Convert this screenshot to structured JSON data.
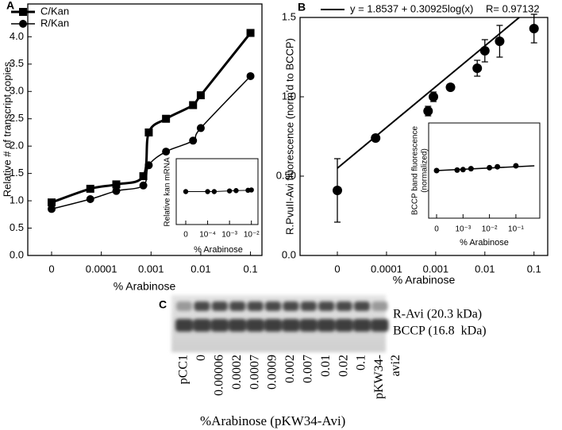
{
  "chart_data": [
    {
      "type": "line",
      "panel_label": "A",
      "xlabel": "% Arabinose",
      "ylabel": "Relative # of transcript copies",
      "xscale": "log",
      "xlim": [
        0,
        0.17
      ],
      "xticks": [
        0,
        0.0001,
        0.001,
        0.01,
        0.1
      ],
      "ylim": [
        0,
        4.6
      ],
      "yticks": [
        {
          "value": 0,
          "label": "0.0"
        },
        0.5,
        {
          "value": 1,
          "label": "1.0"
        },
        1.5,
        {
          "value": 2,
          "label": "2.0"
        },
        2.5,
        {
          "value": 3,
          "label": "3.0"
        },
        3.5,
        {
          "value": 4,
          "label": "4.0"
        }
      ],
      "legend": "upper left",
      "x": [
        0,
        6e-05,
        0.0002,
        0.0007,
        0.0009,
        0.002,
        0.007,
        0.01,
        0.1
      ],
      "series": [
        {
          "name": "C/Kan",
          "color": "#000000",
          "marker": "square",
          "line": "smooth",
          "line_width": 3,
          "values": [
            0.97,
            1.22,
            1.3,
            1.45,
            2.25,
            2.5,
            2.75,
            2.93,
            4.07
          ]
        },
        {
          "name": "R/Kan",
          "color": "#000000",
          "marker": "circle",
          "line": "smooth",
          "line_width": 1.5,
          "values": [
            0.85,
            1.03,
            1.18,
            1.28,
            1.65,
            1.9,
            2.1,
            2.33,
            3.28
          ]
        }
      ]
    },
    {
      "type": "scatter",
      "xlabel": "% Arabinose",
      "ylabel": "Relative kan mRNA",
      "xscale": "log",
      "xlim": [
        0,
        0.02
      ],
      "xticks": [
        0,
        {
          "value": 0.0001,
          "label": "10⁻⁴"
        },
        {
          "value": 0.001,
          "label": "10⁻³"
        },
        {
          "value": 0.01,
          "label": "10⁻²"
        }
      ],
      "ylim": [
        0,
        2
      ],
      "x": [
        0,
        0.0001,
        0.0002,
        0.001,
        0.002,
        0.007,
        0.01
      ],
      "series": [
        {
          "color": "#000000",
          "marker": "circle",
          "line": "straight",
          "line_width": 1,
          "values": [
            1.0,
            1.0,
            1.0,
            1.02,
            1.03,
            1.04,
            1.05
          ]
        }
      ]
    },
    {
      "type": "scatter",
      "panel_label": "B",
      "xlabel": "% Arabinose",
      "ylabel": "R.PvuII-Avi fluorescence (norm'd to BCCP)",
      "xscale": "log",
      "xlim": [
        0,
        0.19
      ],
      "xticks": [
        0,
        0.0001,
        0.001,
        0.01,
        0.1
      ],
      "ylim": [
        0,
        1.5
      ],
      "yticks": [
        {
          "value": 0,
          "label": "0.0"
        },
        {
          "value": 0.5,
          "label": "0.50"
        },
        {
          "value": 1,
          "label": "1.0"
        },
        1.5
      ],
      "legend": "top",
      "annotation": "R= 0.97132",
      "series": [
        {
          "name": "y = 1.8537 + 0.30925log(x)",
          "color": "#000000",
          "line": "straight",
          "line_width": 2,
          "x": [
            0,
            0.05
          ],
          "values": [
            0.55,
            1.5
          ]
        },
        {
          "color": "#000000",
          "marker": "circle",
          "x": [
            0,
            6e-05,
            0.0007,
            0.0009,
            0.002,
            0.007,
            0.01,
            0.02,
            0.1
          ],
          "values": [
            0.41,
            0.74,
            0.91,
            1.0,
            1.06,
            1.18,
            1.29,
            1.35,
            1.43
          ],
          "errors": [
            0.2,
            0.02,
            0.03,
            0.03,
            0.02,
            0.05,
            0.07,
            0.1,
            0.09
          ]
        }
      ]
    },
    {
      "type": "scatter",
      "xlabel": "% Arabinose",
      "ylabel": [
        "BCCP band fluorescence",
        "(normalized)"
      ],
      "xscale": "log",
      "xlim": [
        0,
        0.8
      ],
      "xticks": [
        0,
        {
          "value": 0.001,
          "label": "10⁻³"
        },
        {
          "value": 0.01,
          "label": "10⁻²"
        },
        {
          "value": 0.1,
          "label": "10⁻¹"
        }
      ],
      "ylim": [
        0,
        2
      ],
      "series": [
        {
          "color": "#000000",
          "line": "straight",
          "line_width": 1.5,
          "x": [
            0,
            0.5
          ],
          "values": [
            1.0,
            1.1
          ]
        },
        {
          "color": "#000000",
          "marker": "circle",
          "x": [
            0,
            0.0006,
            0.001,
            0.002,
            0.01,
            0.02,
            0.1
          ],
          "values": [
            1.0,
            1.01,
            1.02,
            1.04,
            1.06,
            1.08,
            1.1
          ]
        }
      ]
    }
  ],
  "gel": {
    "panel_label": "C",
    "bands": [
      "R-Avi (20.3 kDa)",
      "BCCP (16.8  kDa)"
    ],
    "lanes": [
      [
        "pCC1"
      ],
      [
        "0"
      ],
      [
        "0.00006"
      ],
      [
        "0.0002"
      ],
      [
        "0.0007"
      ],
      [
        "0.0009"
      ],
      [
        "0.002"
      ],
      [
        "0.007"
      ],
      [
        "0.01"
      ],
      [
        "0.02"
      ],
      [
        "0.1"
      ],
      [
        "pKW34-",
        "avi2"
      ]
    ],
    "caption": "%Arabinose (pKW34-Avi)"
  }
}
